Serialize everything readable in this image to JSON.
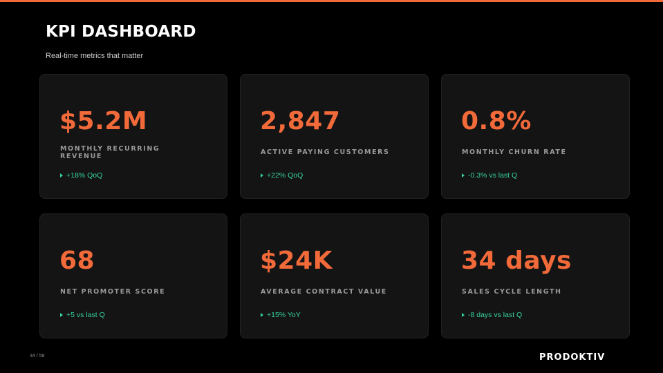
{
  "header": {
    "title": "KPI DASHBOARD",
    "subtitle": "Real-time metrics that matter"
  },
  "kpis": [
    {
      "value": "$5.2M",
      "label": "MONTHLY RECURRING REVENUE",
      "change": "+18% QoQ"
    },
    {
      "value": "2,847",
      "label": "ACTIVE PAYING CUSTOMERS",
      "change": "+22% QoQ"
    },
    {
      "value": "0.8%",
      "label": "MONTHLY CHURN RATE",
      "change": "-0.3% vs last Q"
    },
    {
      "value": "68",
      "label": "NET PROMOTER SCORE",
      "change": "+5 vs last Q"
    },
    {
      "value": "$24K",
      "label": "AVERAGE CONTRACT VALUE",
      "change": "+15% YoY"
    },
    {
      "value": "34 days",
      "label": "SALES CYCLE LENGTH",
      "change": "-8 days vs last Q"
    }
  ],
  "footer": {
    "page_number": "34 / 58",
    "logo_text": "PRODOKTIV"
  },
  "colors": {
    "accent": "#f26a3a",
    "positive": "#37d39b",
    "background": "#000000",
    "card": "#141414"
  }
}
